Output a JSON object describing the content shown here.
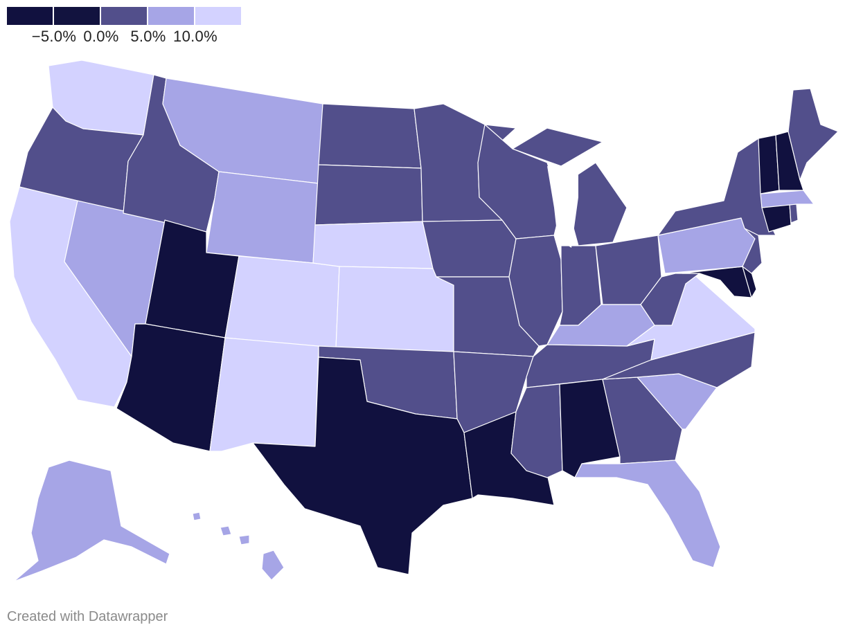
{
  "colors": {
    "bin1": "#11113f",
    "bin2": "#12133f",
    "bin3": "#524f8b",
    "bin4": "#a6a5e6",
    "bin5": "#d3d2ff",
    "lake": "#ffffff"
  },
  "legend": {
    "swatches": [
      "bin1",
      "bin2",
      "bin3",
      "bin4",
      "bin5"
    ],
    "ticks": [
      "−5.0%",
      "0.0%",
      "5.0%",
      "10.0%"
    ]
  },
  "states": {
    "WA": "bin5",
    "OR": "bin3",
    "CA": "bin5",
    "ID": "bin3",
    "NV": "bin4",
    "MT": "bin4",
    "WY": "bin4",
    "UT": "bin1",
    "AZ": "bin1",
    "CO": "bin5",
    "NM": "bin5",
    "ND": "bin3",
    "SD": "bin3",
    "NE": "bin5",
    "KS": "bin5",
    "OK": "bin3",
    "TX": "bin1",
    "MN": "bin3",
    "IA": "bin3",
    "MO": "bin3",
    "AR": "bin3",
    "LA": "bin1",
    "WI": "bin3",
    "IL": "bin3",
    "MI": "bin3",
    "IN": "bin3",
    "OH": "bin3",
    "KY": "bin4",
    "TN": "bin3",
    "MS": "bin3",
    "AL": "bin1",
    "GA": "bin3",
    "FL": "bin4",
    "SC": "bin4",
    "NC": "bin3",
    "VA": "bin5",
    "WV": "bin3",
    "MD": "bin1",
    "DE": "bin1",
    "PA": "bin4",
    "NJ": "bin3",
    "NY": "bin3",
    "CT": "bin1",
    "RI": "bin3",
    "MA": "bin4",
    "VT": "bin1",
    "NH": "bin1",
    "ME": "bin3",
    "AK": "bin4",
    "HI": "bin4"
  },
  "credit": "Created with Datawrapper"
}
